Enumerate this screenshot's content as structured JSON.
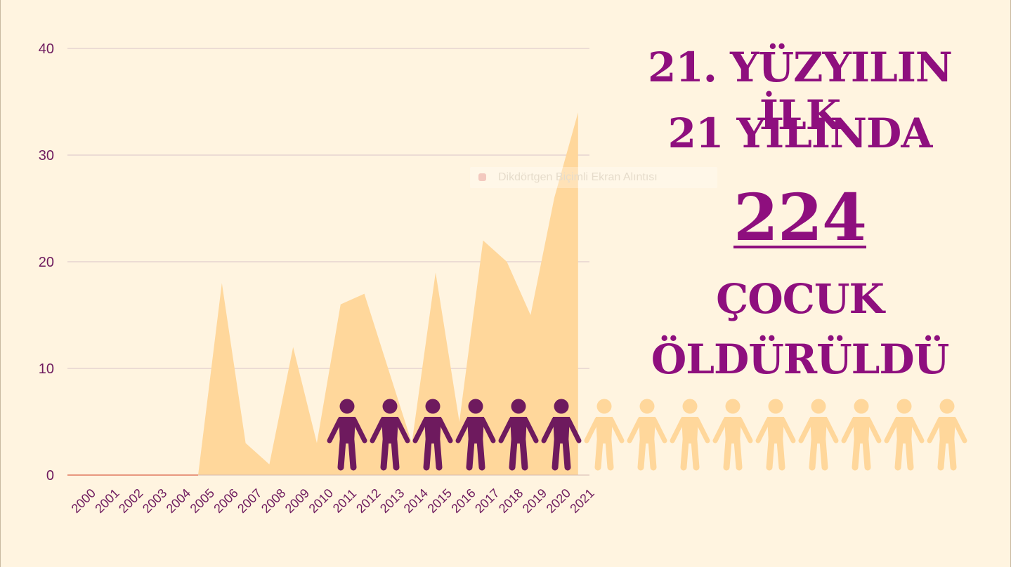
{
  "chart_data": {
    "type": "area",
    "x": [
      "2000",
      "2001",
      "2002",
      "2003",
      "2004",
      "2005",
      "2006",
      "2007",
      "2008",
      "2009",
      "2010",
      "2011",
      "2012",
      "2013",
      "2014",
      "2015",
      "2016",
      "2017",
      "2018",
      "2019",
      "2020",
      "2021"
    ],
    "values": [
      0,
      0,
      0,
      0,
      0,
      0,
      18,
      3,
      1,
      12,
      3,
      16,
      17,
      10,
      3,
      19,
      5,
      22,
      20,
      15,
      26,
      34
    ],
    "ylim": [
      0,
      40
    ],
    "yticks": [
      0,
      10,
      20,
      30,
      40
    ],
    "grid": true,
    "title": "",
    "xlabel": "",
    "ylabel": ""
  },
  "colors": {
    "area": "#ffd79b",
    "text_purple": "#6e1a5e",
    "headline": "#8e0f7e",
    "figure_dark": "#6e1a5e",
    "figure_light": "#ffd79b",
    "gridline": "#d8c5c8",
    "baseline": "#e07a5f"
  },
  "headline": {
    "line1": "21. YÜZYILIN İLK",
    "line2": "21 YILINDA",
    "number": "224",
    "line4": "ÇOCUK",
    "line5": "ÖLDÜRÜLDÜ"
  },
  "pictogram": {
    "icon": "person-icon",
    "dark_count": 6,
    "light_count": 9
  },
  "tooltip": {
    "text": "Dikdörtgen Biçimli Ekran Alıntısı"
  }
}
